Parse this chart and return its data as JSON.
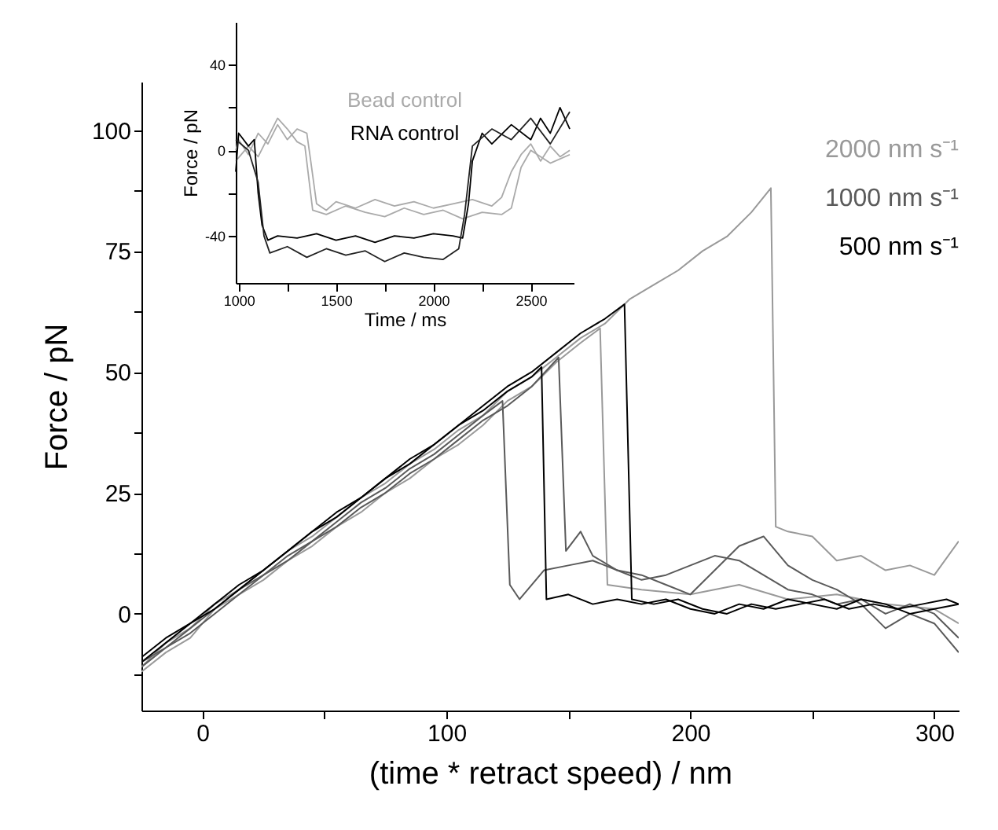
{
  "chart_data": [
    {
      "type": "line",
      "xlabel": "(time * retract speed) / nm",
      "ylabel": "Force / pN",
      "xlim": [
        -25,
        310
      ],
      "ylim": [
        -20,
        110
      ],
      "xticks": [
        0,
        {
          "value": 50,
          "label": null
        },
        100,
        {
          "value": 150,
          "label": null
        },
        200,
        {
          "value": 250,
          "label": null
        },
        300
      ],
      "yticks": [
        {
          "value": -12.5,
          "label": null
        },
        0,
        {
          "value": 12.5,
          "label": null
        },
        25,
        {
          "value": 37.5,
          "label": null
        },
        50,
        {
          "value": 62.5,
          "label": null
        },
        75,
        {
          "value": 87.5,
          "label": null
        },
        100
      ],
      "legend": "top right",
      "series": [
        {
          "name": "2000 nm s⁻¹",
          "color": "#999999",
          "x": [
            -25,
            -15,
            -5,
            5,
            15,
            25,
            35,
            45,
            55,
            65,
            75,
            85,
            95,
            105,
            115,
            125,
            135,
            145,
            155,
            165,
            175,
            185,
            195,
            205,
            215,
            225,
            233,
            235,
            240,
            250,
            260,
            270,
            280,
            290,
            300,
            310
          ],
          "values": [
            -11,
            -6,
            -3,
            2,
            5,
            9,
            13,
            16,
            20,
            24,
            27,
            31,
            34,
            38,
            41,
            46,
            49,
            53,
            57,
            60,
            65,
            68,
            71,
            75,
            78,
            83,
            88,
            18,
            17,
            16,
            11,
            12,
            9,
            10,
            8,
            15
          ]
        },
        {
          "color": "#999999",
          "x": [
            -25,
            -15,
            -5,
            5,
            15,
            25,
            35,
            45,
            55,
            65,
            75,
            85,
            95,
            105,
            115,
            125,
            135,
            145,
            155,
            163,
            166,
            180,
            200,
            220,
            240,
            260,
            280,
            300,
            310
          ],
          "values": [
            -12,
            -8,
            -5,
            1,
            4,
            7,
            11,
            14,
            18,
            21,
            25,
            28,
            32,
            35,
            39,
            44,
            47,
            52,
            56,
            59,
            6,
            5,
            4,
            6,
            3,
            4,
            2,
            1,
            -2
          ]
        },
        {
          "name": "1000 nm s⁻¹",
          "color": "#5a5a5a",
          "x": [
            -25,
            -15,
            -5,
            5,
            15,
            25,
            35,
            45,
            55,
            65,
            75,
            85,
            95,
            105,
            115,
            123,
            126,
            130,
            140,
            150,
            160,
            170,
            180,
            190,
            200,
            210,
            220,
            230,
            240,
            250,
            260,
            270,
            280,
            290,
            300,
            310
          ],
          "values": [
            -10,
            -7,
            -3,
            1,
            5,
            8,
            12,
            15,
            19,
            23,
            26,
            30,
            33,
            37,
            41,
            44,
            6,
            3,
            9,
            10,
            11,
            9,
            7,
            8,
            10,
            12,
            11,
            8,
            5,
            4,
            2,
            3,
            0,
            2,
            0,
            -5
          ]
        },
        {
          "color": "#5a5a5a",
          "x": [
            -25,
            -15,
            -5,
            5,
            15,
            25,
            35,
            45,
            55,
            65,
            75,
            85,
            95,
            105,
            115,
            125,
            135,
            146,
            149,
            155,
            160,
            170,
            180,
            190,
            200,
            210,
            220,
            230,
            240,
            250,
            260,
            270,
            280,
            290,
            300,
            310
          ],
          "values": [
            -11,
            -7,
            -4,
            0,
            4,
            8,
            11,
            15,
            18,
            22,
            25,
            29,
            32,
            36,
            40,
            43,
            47,
            53,
            13,
            17,
            12,
            9,
            8,
            6,
            4,
            9,
            14,
            16,
            10,
            7,
            5,
            2,
            -3,
            0,
            -2,
            -8
          ]
        },
        {
          "name": "500 nm s⁻¹",
          "color": "#000000",
          "x": [
            -25,
            -15,
            -5,
            5,
            15,
            25,
            35,
            45,
            55,
            65,
            75,
            85,
            95,
            105,
            115,
            125,
            135,
            139,
            141,
            150,
            160,
            170,
            180,
            190,
            200,
            210,
            220,
            230,
            240,
            250,
            260,
            270,
            280,
            290,
            300,
            310
          ],
          "values": [
            -10,
            -6,
            -2,
            1,
            5,
            9,
            13,
            17,
            20,
            24,
            28,
            31,
            35,
            39,
            42,
            46,
            49,
            51,
            3,
            4,
            2,
            3,
            2,
            3,
            1,
            0,
            2,
            1,
            3,
            2,
            1,
            3,
            2,
            0,
            1,
            2
          ]
        },
        {
          "color": "#000000",
          "x": [
            -25,
            -15,
            -5,
            5,
            15,
            25,
            35,
            45,
            55,
            65,
            75,
            85,
            95,
            105,
            115,
            125,
            135,
            145,
            155,
            165,
            173,
            176,
            185,
            195,
            205,
            215,
            225,
            235,
            245,
            255,
            265,
            275,
            285,
            295,
            305,
            310
          ],
          "values": [
            -9,
            -5,
            -2,
            2,
            6,
            9,
            13,
            17,
            21,
            24,
            28,
            32,
            35,
            39,
            43,
            47,
            50,
            54,
            58,
            61,
            64,
            3,
            2,
            3,
            1,
            0,
            2,
            1,
            2,
            3,
            1,
            2,
            1,
            2,
            3,
            2
          ]
        }
      ]
    },
    {
      "type": "line",
      "xlabel": "Time / ms",
      "ylabel": "Force / pN",
      "xlim": [
        985,
        2720
      ],
      "ylim": [
        -62,
        60
      ],
      "xticks": [
        1000,
        {
          "value": 1250,
          "label": null
        },
        1500,
        {
          "value": 1750,
          "label": null
        },
        2000,
        {
          "value": 2250,
          "label": null
        },
        2500
      ],
      "yticks": [
        -40,
        {
          "value": -20,
          "label": null
        },
        0,
        {
          "value": 20,
          "label": null
        },
        40
      ],
      "legend": "top",
      "series": [
        {
          "name": "Bead control",
          "color": "#aaaaaa",
          "x": [
            985,
            1000,
            1050,
            1100,
            1150,
            1200,
            1250,
            1300,
            1350,
            1370,
            1400,
            1450,
            1500,
            1600,
            1700,
            1800,
            1900,
            2000,
            2100,
            2200,
            2300,
            2350,
            2400,
            2450,
            2500,
            2550,
            2600,
            2650,
            2700
          ],
          "values": [
            0,
            5,
            -2,
            8,
            3,
            12,
            5,
            10,
            8,
            -5,
            -25,
            -28,
            -24,
            -27,
            -23,
            -26,
            -24,
            -27,
            -25,
            -23,
            -26,
            -22,
            -10,
            -2,
            3,
            -5,
            2,
            -3,
            0
          ]
        },
        {
          "color": "#aaaaaa",
          "x": [
            985,
            1050,
            1100,
            1150,
            1200,
            1250,
            1300,
            1340,
            1380,
            1450,
            1550,
            1650,
            1750,
            1850,
            1950,
            2050,
            2150,
            2250,
            2350,
            2400,
            2450,
            2500,
            2600,
            2700
          ],
          "values": [
            -5,
            2,
            -3,
            6,
            15,
            10,
            4,
            2,
            -28,
            -30,
            -26,
            -29,
            -31,
            -27,
            -30,
            -28,
            -32,
            -29,
            -30,
            -27,
            -8,
            0,
            -6,
            -2
          ]
        },
        {
          "name": "RNA control",
          "color": "#000000",
          "x": [
            985,
            1000,
            1050,
            1080,
            1100,
            1120,
            1150,
            1200,
            1300,
            1400,
            1500,
            1600,
            1700,
            1800,
            1900,
            2000,
            2100,
            2150,
            2180,
            2200,
            2250,
            2300,
            2400,
            2500,
            2550,
            2600,
            2650,
            2700
          ],
          "values": [
            -10,
            8,
            2,
            5,
            -20,
            -35,
            -42,
            -40,
            -41,
            -39,
            -42,
            -40,
            -43,
            -40,
            -41,
            -39,
            -40,
            -41,
            -25,
            -5,
            8,
            3,
            12,
            5,
            15,
            8,
            20,
            10
          ]
        },
        {
          "color": "#222222",
          "x": [
            985,
            1050,
            1100,
            1130,
            1160,
            1250,
            1350,
            1450,
            1550,
            1650,
            1750,
            1850,
            1950,
            2050,
            2130,
            2160,
            2200,
            2300,
            2400,
            2500,
            2600,
            2700
          ],
          "values": [
            5,
            0,
            -15,
            -40,
            -48,
            -45,
            -50,
            -46,
            -49,
            -47,
            -52,
            -48,
            -50,
            -51,
            -46,
            -30,
            2,
            10,
            5,
            15,
            3,
            18
          ]
        }
      ]
    }
  ]
}
